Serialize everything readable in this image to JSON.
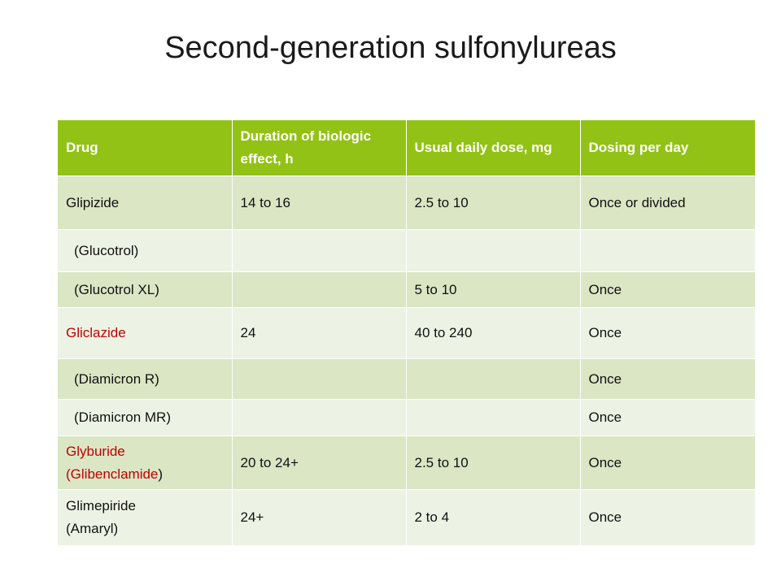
{
  "title": "Second-generation sulfonylureas",
  "colors": {
    "header_bg": "#92c216",
    "row_odd": "#dae6c4",
    "row_even": "#edf3e4",
    "highlight_text": "#c00000"
  },
  "table": {
    "headers": [
      "Drug",
      "Duration of biologic effect, h",
      "Usual daily dose, mg",
      "Dosing per day"
    ],
    "rows": [
      {
        "drug": "Glipizide",
        "duration": "14 to 16",
        "dose": "2.5 to 10",
        "dosing": "Once or divided"
      },
      {
        "drug": "(Glucotrol)",
        "duration": "",
        "dose": "",
        "dosing": ""
      },
      {
        "drug": "(Glucotrol XL)",
        "duration": "",
        "dose": "5 to 10",
        "dosing": "Once"
      },
      {
        "drug": "Gliclazide",
        "duration": "24",
        "dose": "40 to 240",
        "dosing": "Once"
      },
      {
        "drug": "(Diamicron R)",
        "duration": "",
        "dose": "",
        "dosing": "Once"
      },
      {
        "drug": "(Diamicron MR)",
        "duration": "",
        "dose": "",
        "dosing": "Once"
      },
      {
        "drug_line1": "Glyburide",
        "drug_line2_name": "(Glibenclamide",
        "drug_line2_close": ")",
        "duration": "20 to 24+",
        "dose": "2.5 to 10",
        "dosing": "Once"
      },
      {
        "drug_line1": "Glimepiride",
        "drug_line2": "(Amaryl)",
        "duration": "24+",
        "dose": "2 to 4",
        "dosing": "Once"
      }
    ]
  }
}
